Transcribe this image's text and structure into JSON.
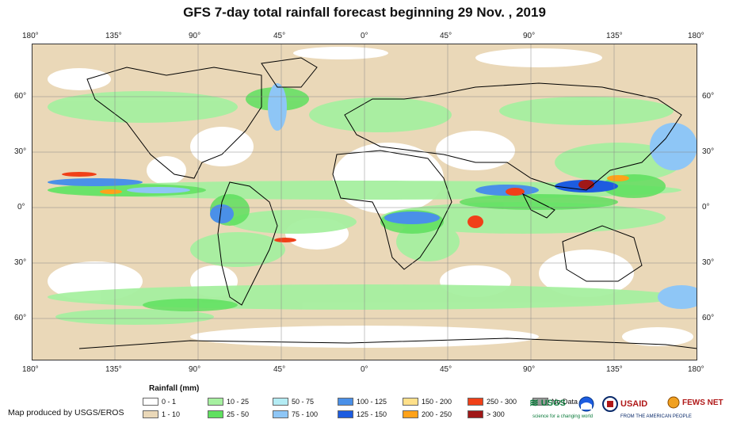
{
  "title": "GFS 7-day total rainfall forecast beginning 29 Nov. , 2019",
  "lon_labels": [
    "180°",
    "135°",
    "90°",
    "45°",
    "0°",
    "45°",
    "90°",
    "135°",
    "180°"
  ],
  "lat_labels": [
    "60°",
    "30°",
    "0°",
    "30°",
    "60°"
  ],
  "legend": {
    "title": "Rainfall (mm)",
    "items": [
      {
        "label": "0 - 1",
        "color": "#ffffff"
      },
      {
        "label": "1 - 10",
        "color": "#ead8b8"
      },
      {
        "label": "10 - 25",
        "color": "#a6f0a0"
      },
      {
        "label": "25 - 50",
        "color": "#5fe05f"
      },
      {
        "label": "50 - 75",
        "color": "#b4ecf4"
      },
      {
        "label": "75 - 100",
        "color": "#8ec6f6"
      },
      {
        "label": "100 - 125",
        "color": "#4a90e8"
      },
      {
        "label": "125 - 150",
        "color": "#1d5ce0"
      },
      {
        "label": "150 - 200",
        "color": "#ffe08a"
      },
      {
        "label": "200 - 250",
        "color": "#ffa21a"
      },
      {
        "label": "250 - 300",
        "color": "#f04018"
      },
      {
        "label": "> 300",
        "color": "#a01818"
      },
      {
        "label": "No Data",
        "color": "#999999"
      }
    ]
  },
  "credit": "Map produced by USGS/EROS",
  "logos": {
    "usgs": "USGS",
    "usgs_tagline": "science for a changing world",
    "usaid": "USAID",
    "usaid_tagline": "FROM THE AMERICAN PEOPLE",
    "fews": "FEWS NET"
  }
}
